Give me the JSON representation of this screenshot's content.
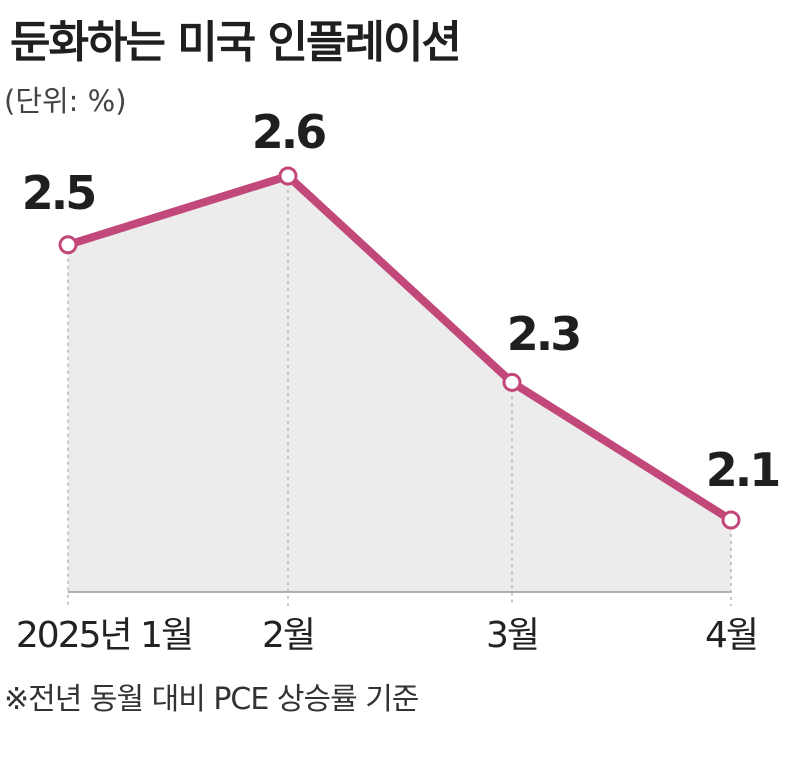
{
  "header": {
    "title": "둔화하는 미국 인플레이션",
    "unit": "(단위: %)"
  },
  "footnote": "※전년 동월 대비 PCE 상승률 기준",
  "colors": {
    "line": "#c2487a",
    "area": "#ececec",
    "baseline": "#999999",
    "guide": "#b5b5b5",
    "marker_fill": "#ffffff"
  },
  "chart_data": {
    "type": "area",
    "categories": [
      "2025년 1월",
      "2월",
      "3월",
      "4월"
    ],
    "series": [
      {
        "values": [
          2.5,
          2.6,
          2.3,
          2.1
        ],
        "labels": [
          "2.5",
          "2.6",
          "2.3",
          "2.1"
        ]
      }
    ],
    "xlabel": "",
    "ylabel": "",
    "grid": false,
    "legend": "none"
  }
}
